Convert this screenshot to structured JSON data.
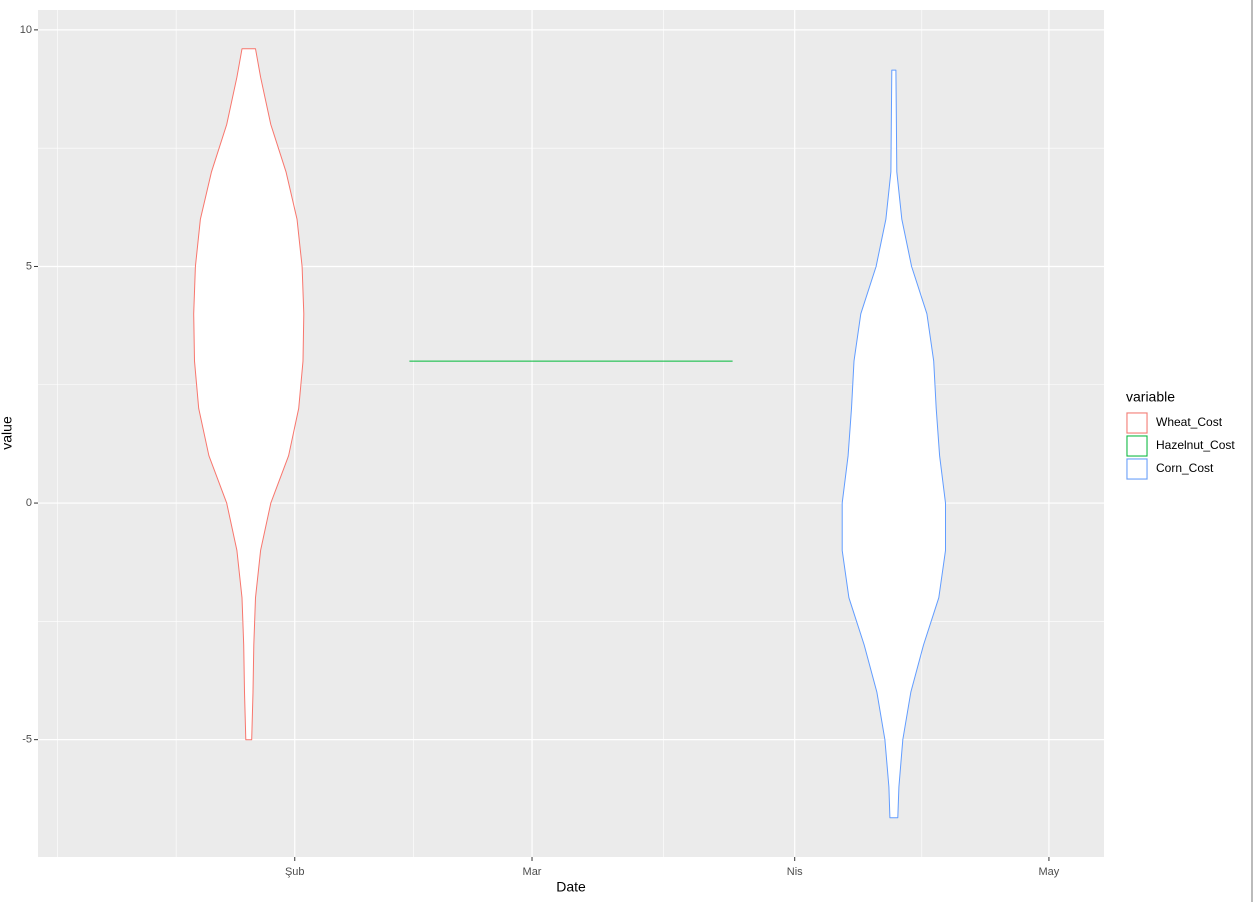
{
  "chart_data": {
    "type": "violin",
    "x_label": "Date",
    "y_label": "value",
    "legend_title": "variable",
    "legend_position": "right",
    "grid": true,
    "xlim": [
      1.7,
      127.5
    ],
    "xticks": [
      {
        "value": 32,
        "label": "Şub"
      },
      {
        "value": 60,
        "label": "Mar"
      },
      {
        "value": 91,
        "label": "Nis"
      },
      {
        "value": 121,
        "label": "May"
      }
    ],
    "ylim": [
      -7.48,
      10.42
    ],
    "yticks": [
      -5,
      0,
      5,
      10
    ],
    "series": [
      {
        "name": "Wheat_Cost",
        "color": "#F8766D",
        "center": 26.57,
        "y": [
          9.6,
          9,
          8,
          7,
          6,
          5,
          4,
          3,
          2,
          1,
          0,
          -1,
          -2,
          -3,
          -4,
          -5
        ],
        "half_width": [
          0.8,
          1.4,
          2.6,
          4.4,
          5.7,
          6.3,
          6.5,
          6.4,
          5.9,
          4.7,
          2.6,
          1.4,
          0.8,
          0.6,
          0.5,
          0.35
        ]
      },
      {
        "name": "Hazelnut_Cost",
        "color": "#00BA38",
        "center": 64.6,
        "y": [
          3
        ],
        "half_width": [
          19.07
        ]
      },
      {
        "name": "Corn_Cost",
        "color": "#619CFF",
        "center": 102.7,
        "y": [
          9.15,
          8,
          7,
          6,
          5,
          4,
          3,
          2,
          1,
          0,
          -1,
          -2,
          -3,
          -4,
          -5,
          -6,
          -6.65
        ],
        "half_width": [
          0.24,
          0.3,
          0.35,
          0.94,
          2.1,
          3.9,
          4.7,
          5.0,
          5.4,
          6.1,
          6.1,
          5.3,
          3.5,
          2.0,
          1.06,
          0.59,
          0.47
        ]
      }
    ]
  }
}
